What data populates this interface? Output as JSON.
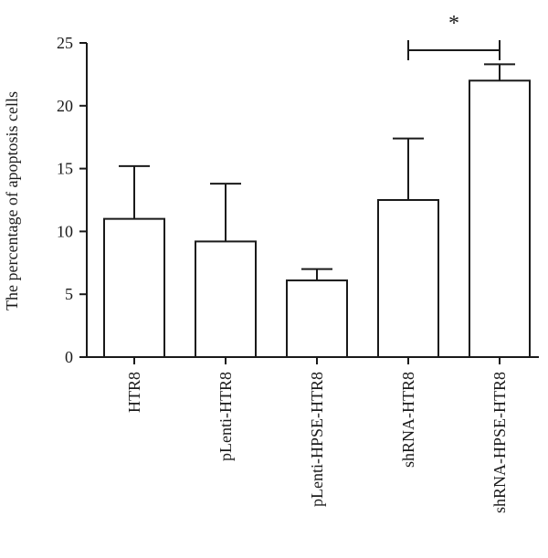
{
  "chart_data": {
    "type": "bar",
    "categories": [
      "HTR8",
      "pLenti-HTR8",
      "pLenti-HPSE-HTR8",
      "shRNA-HTR8",
      "shRNA-HPSE-HTR8"
    ],
    "values": [
      11.0,
      9.2,
      6.1,
      12.5,
      22.0
    ],
    "error": [
      4.2,
      4.6,
      0.9,
      4.9,
      1.3
    ],
    "ylabel": "The percentage of apoptosis cells",
    "xlabel": "",
    "ylim": [
      0,
      25
    ],
    "yticks": [
      0,
      5,
      10,
      15,
      20,
      25
    ],
    "ytick_labels": [
      "0",
      "5",
      "10",
      "15",
      "20",
      "25"
    ],
    "significance": [
      {
        "from": "shRNA-HTR8",
        "to": "shRNA-HPSE-HTR8",
        "label": "*"
      }
    ],
    "grid": false
  }
}
